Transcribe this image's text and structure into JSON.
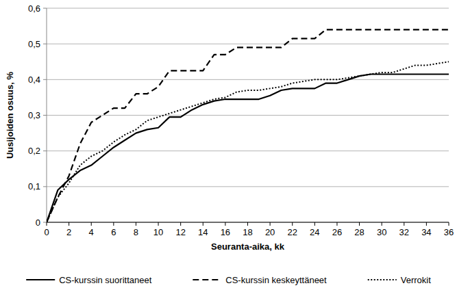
{
  "chart_data": {
    "type": "line",
    "x_label": "Seuranta-aika, kk",
    "y_label": "Uusijoiden osuus, %",
    "x": [
      0,
      1,
      2,
      3,
      4,
      5,
      6,
      7,
      8,
      9,
      10,
      11,
      12,
      13,
      14,
      15,
      16,
      17,
      18,
      19,
      20,
      21,
      22,
      23,
      24,
      25,
      26,
      27,
      28,
      29,
      30,
      31,
      32,
      33,
      34,
      35,
      36
    ],
    "series": [
      {
        "name": "CS-kurssin suorittaneet",
        "color": "#000000",
        "line_style": "solid",
        "values": [
          0,
          0.09,
          0.12,
          0.145,
          0.16,
          0.185,
          0.21,
          0.23,
          0.25,
          0.26,
          0.265,
          0.295,
          0.295,
          0.315,
          0.33,
          0.34,
          0.345,
          0.345,
          0.345,
          0.345,
          0.355,
          0.37,
          0.375,
          0.375,
          0.375,
          0.39,
          0.39,
          0.4,
          0.41,
          0.415,
          0.415,
          0.415,
          0.415,
          0.415,
          0.415,
          0.415,
          0.415
        ]
      },
      {
        "name": "CS-kurssin keskeyttäneet",
        "color": "#000000",
        "line_style": "dashed",
        "values": [
          0,
          0.07,
          0.13,
          0.22,
          0.28,
          0.3,
          0.32,
          0.32,
          0.36,
          0.36,
          0.38,
          0.425,
          0.425,
          0.425,
          0.425,
          0.47,
          0.47,
          0.49,
          0.49,
          0.49,
          0.49,
          0.49,
          0.515,
          0.515,
          0.515,
          0.54,
          0.54,
          0.54,
          0.54,
          0.54,
          0.54,
          0.54,
          0.54,
          0.54,
          0.54,
          0.54,
          0.54
        ]
      },
      {
        "name": "Verrokit",
        "color": "#000000",
        "line_style": "dotted",
        "values": [
          0,
          0.07,
          0.11,
          0.16,
          0.185,
          0.2,
          0.225,
          0.245,
          0.26,
          0.285,
          0.295,
          0.305,
          0.315,
          0.325,
          0.335,
          0.345,
          0.35,
          0.365,
          0.37,
          0.37,
          0.375,
          0.38,
          0.39,
          0.395,
          0.4,
          0.4,
          0.4,
          0.405,
          0.41,
          0.415,
          0.42,
          0.42,
          0.43,
          0.44,
          0.44,
          0.445,
          0.45
        ]
      }
    ],
    "xlim": [
      0,
      36
    ],
    "xticks": [
      0,
      2,
      4,
      6,
      8,
      10,
      12,
      14,
      16,
      18,
      20,
      22,
      24,
      26,
      28,
      30,
      32,
      34,
      36
    ],
    "ylim": [
      0,
      0.6
    ],
    "yticks": [
      0,
      {
        "value": 0.1,
        "label": "0,1"
      },
      {
        "value": 0.2,
        "label": "0,2"
      },
      {
        "value": 0.3,
        "label": "0,3"
      },
      {
        "value": 0.4,
        "label": "0,4"
      },
      {
        "value": 0.5,
        "label": "0,5"
      },
      {
        "value": 0.6,
        "label": "0,6"
      }
    ],
    "grid": true,
    "legend": "bottom"
  }
}
